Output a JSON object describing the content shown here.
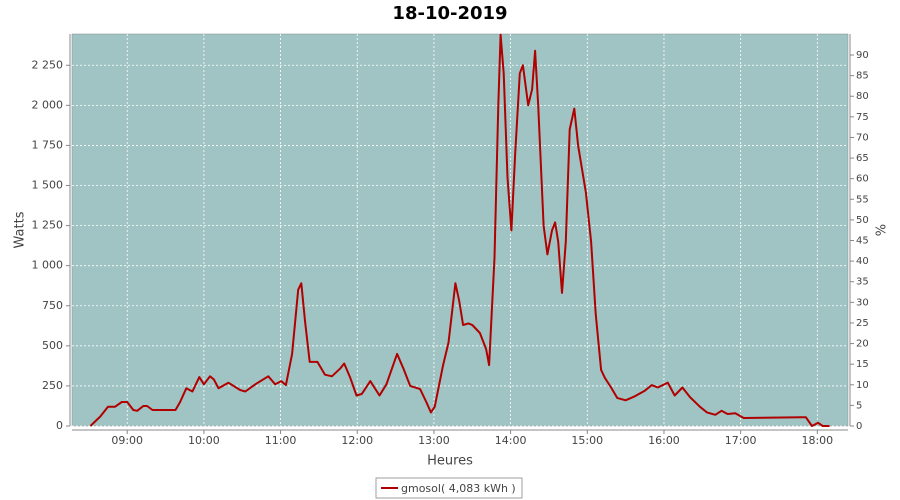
{
  "chart_data": {
    "type": "line",
    "title": "18-10-2019",
    "x_label": "Heures",
    "y_label": "Watts",
    "y2_label": "%",
    "grid": true,
    "legend": "bottom",
    "xlim": [
      8.28,
      18.4
    ],
    "xticks": [
      {
        "value": 9,
        "label": "09:00"
      },
      {
        "value": 10,
        "label": "10:00"
      },
      {
        "value": 11,
        "label": "11:00"
      },
      {
        "value": 12,
        "label": "12:00"
      },
      {
        "value": 13,
        "label": "13:00"
      },
      {
        "value": 14,
        "label": "14:00"
      },
      {
        "value": 15,
        "label": "15:00"
      },
      {
        "value": 16,
        "label": "16:00"
      },
      {
        "value": 17,
        "label": "17:00"
      },
      {
        "value": 18,
        "label": "18:00"
      }
    ],
    "ylim": [
      0,
      2445
    ],
    "yticks": [
      0,
      250,
      500,
      750,
      {
        "value": 1000,
        "label": "1 000"
      },
      {
        "value": 1250,
        "label": "1 250"
      },
      {
        "value": 1500,
        "label": "1 500"
      },
      {
        "value": 1750,
        "label": "1 750"
      },
      {
        "value": 2000,
        "label": "2 000"
      },
      {
        "value": 2250,
        "label": "2 250"
      }
    ],
    "y2lim": [
      0,
      95.1
    ],
    "y2ticks": [
      0,
      5,
      10,
      15,
      20,
      25,
      30,
      35,
      40,
      45,
      50,
      55,
      60,
      65,
      70,
      75,
      80,
      85,
      90
    ],
    "x": [
      8.52,
      8.65,
      8.75,
      8.84,
      8.93,
      9.0,
      9.08,
      9.13,
      9.21,
      9.26,
      9.33,
      9.63,
      9.69,
      9.77,
      9.85,
      9.94,
      10.0,
      10.08,
      10.13,
      10.19,
      10.32,
      10.47,
      10.54,
      10.67,
      10.84,
      10.93,
      11.01,
      11.07,
      11.15,
      11.23,
      11.27,
      11.32,
      11.38,
      11.48,
      11.58,
      11.67,
      11.78,
      11.83,
      11.91,
      11.99,
      12.06,
      12.17,
      12.29,
      12.38,
      12.52,
      12.6,
      12.69,
      12.82,
      12.9,
      12.96,
      13.01,
      13.12,
      13.19,
      13.28,
      13.33,
      13.38,
      13.45,
      13.5,
      13.6,
      13.68,
      13.72,
      13.79,
      13.84,
      13.87,
      13.91,
      13.96,
      14.01,
      14.06,
      14.12,
      14.16,
      14.23,
      14.28,
      14.32,
      14.36,
      14.43,
      14.48,
      14.54,
      14.58,
      14.62,
      14.67,
      14.72,
      14.77,
      14.83,
      14.88,
      14.98,
      15.05,
      15.11,
      15.18,
      15.23,
      15.31,
      15.39,
      15.5,
      15.62,
      15.75,
      15.84,
      15.92,
      16.05,
      16.14,
      16.24,
      16.34,
      16.47,
      16.56,
      16.67,
      16.75,
      16.83,
      16.93,
      17.04,
      17.8,
      17.85,
      17.93,
      18.01,
      18.07,
      18.16
    ],
    "series": [
      {
        "name": "gmosol( 4,083 kWh )",
        "color": "#b00000",
        "values": [
          0,
          60,
          120,
          120,
          150,
          150,
          100,
          95,
          125,
          125,
          100,
          100,
          150,
          235,
          215,
          305,
          260,
          310,
          290,
          235,
          270,
          225,
          215,
          260,
          310,
          260,
          280,
          255,
          450,
          850,
          890,
          650,
          400,
          400,
          320,
          310,
          360,
          390,
          300,
          190,
          200,
          280,
          190,
          260,
          450,
          360,
          250,
          230,
          150,
          85,
          120,
          380,
          520,
          890,
          780,
          630,
          640,
          630,
          580,
          480,
          380,
          1050,
          2000,
          2440,
          2200,
          1550,
          1220,
          1700,
          2200,
          2250,
          2000,
          2100,
          2340,
          2000,
          1250,
          1070,
          1220,
          1270,
          1150,
          830,
          1150,
          1850,
          1980,
          1750,
          1460,
          1150,
          700,
          350,
          300,
          240,
          175,
          160,
          185,
          220,
          255,
          240,
          270,
          190,
          240,
          180,
          120,
          85,
          70,
          95,
          75,
          80,
          50,
          55,
          55,
          0,
          20,
          0,
          0
        ]
      }
    ]
  }
}
